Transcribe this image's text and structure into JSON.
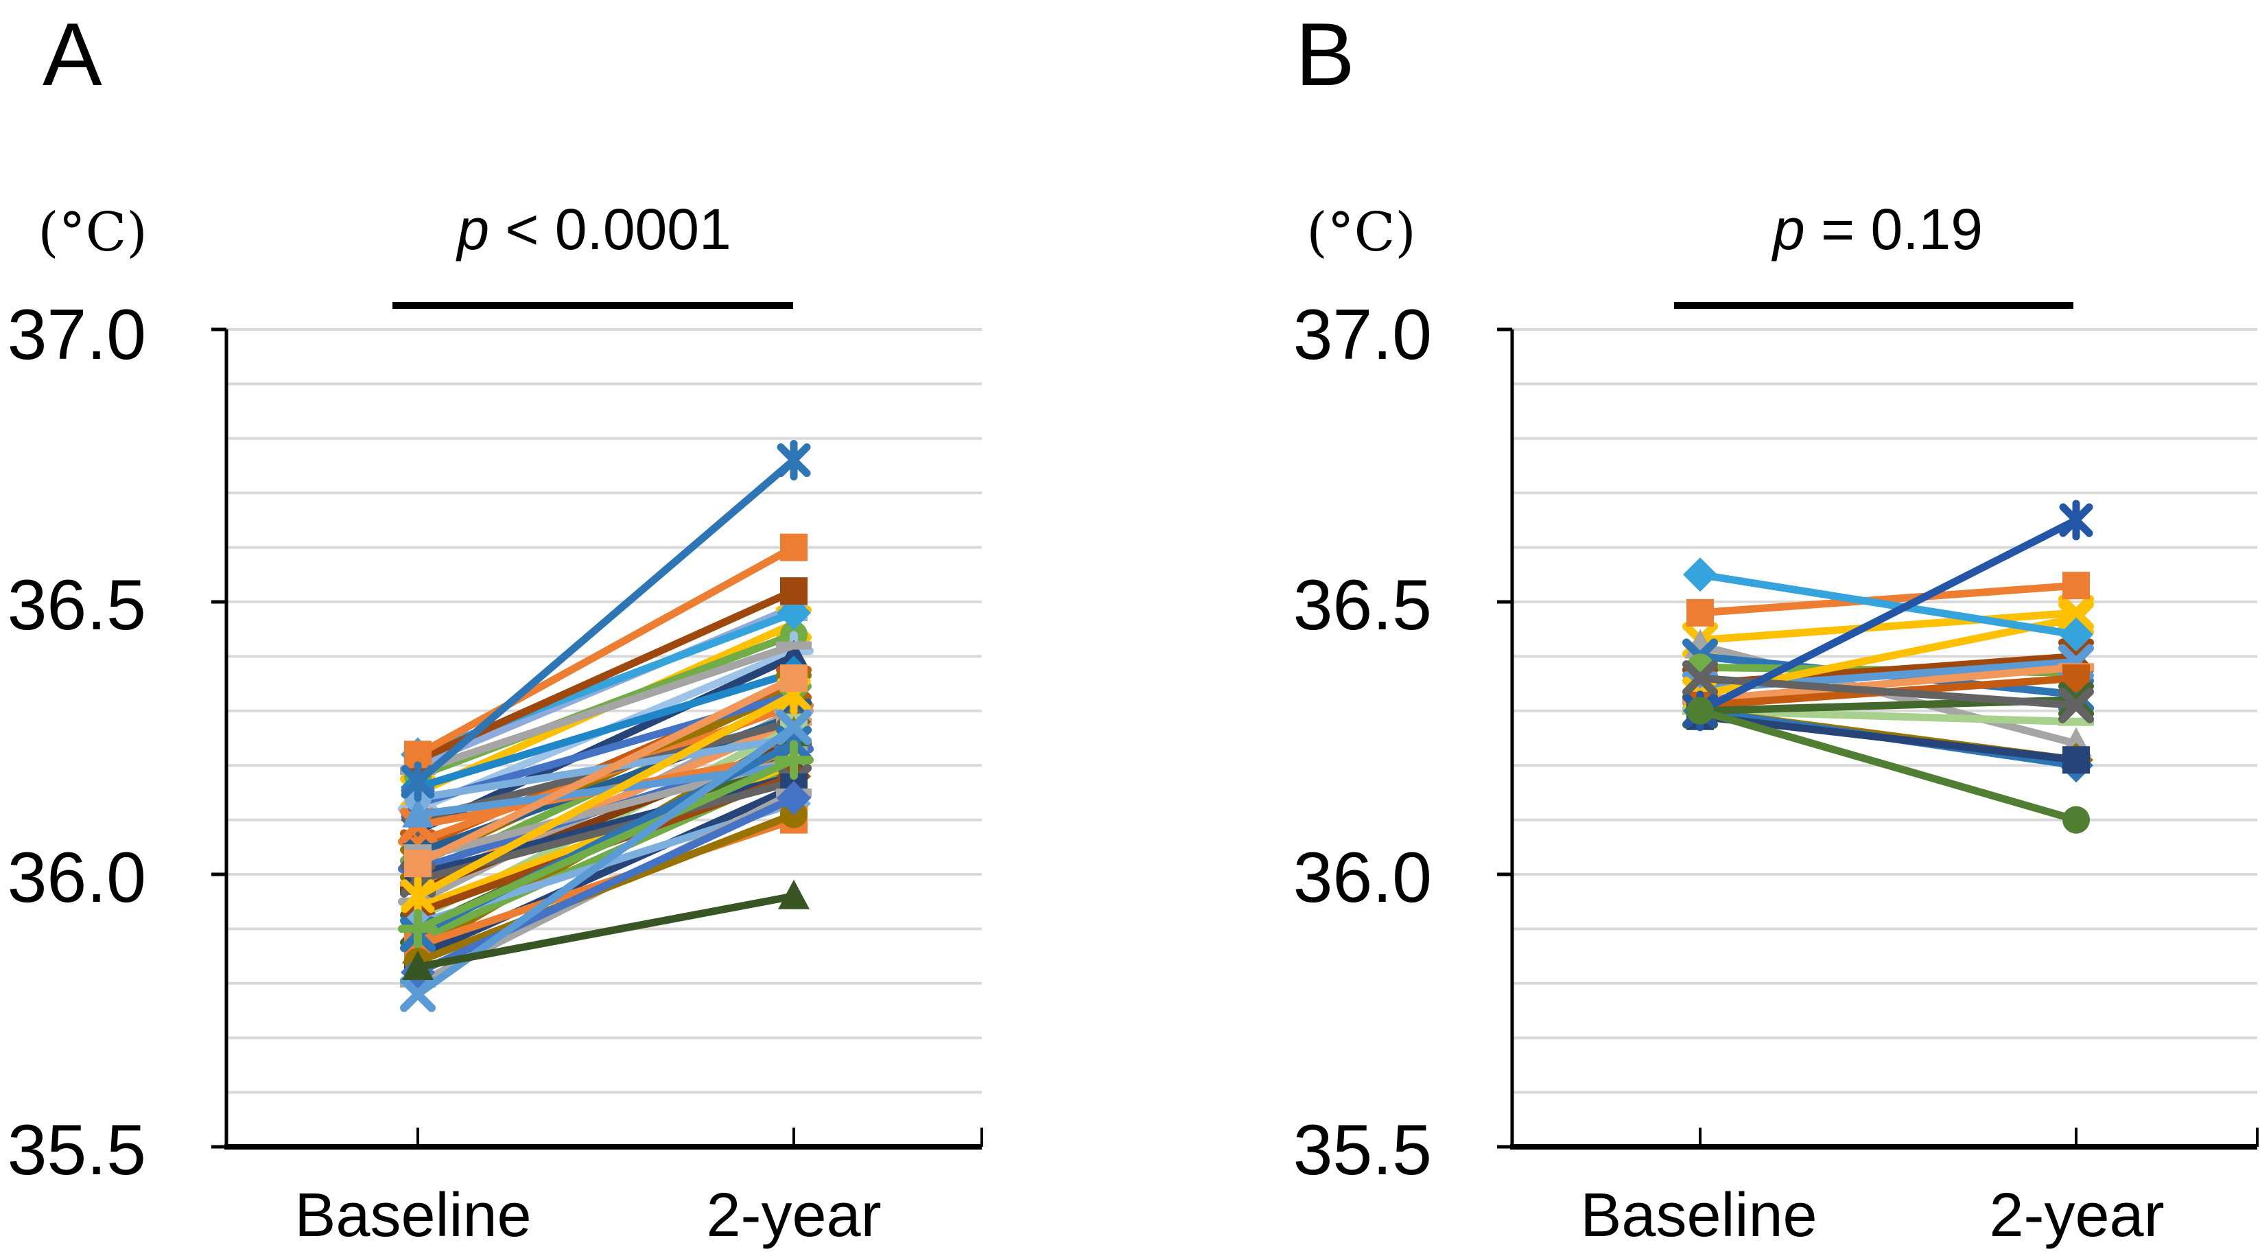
{
  "figure": {
    "background": "#FFFFFF",
    "axis_color": "#000000",
    "grid_color": "#D9D9D9",
    "significance_bar_color": "#000000"
  },
  "chart_data": [
    {
      "type": "line",
      "subtype": "paired-individual-subject-lines",
      "panel_label": "A",
      "unit_label": "(°C)",
      "p_annotation": {
        "italic": "p",
        "rest": " < 0.0001",
        "full": "p < 0.0001"
      },
      "categories": [
        "Baseline",
        "2-year"
      ],
      "xlabel": "",
      "ylabel": "(°C)",
      "ylim": [
        35.5,
        37.0
      ],
      "yticks": [
        37.0,
        36.5,
        36.0,
        35.5
      ],
      "ytick_labels": [
        "37.0",
        "36.5",
        "36.0",
        "35.5"
      ],
      "minor_grid_step": 0.1,
      "grid": "horizontal-minor",
      "legend": "none",
      "series": [
        {
          "color": "#8FAADC",
          "marker": "square",
          "values": [
            36.2,
            36.49
          ]
        },
        {
          "color": "#FFC000",
          "marker": "x",
          "values": [
            36.15,
            36.46
          ]
        },
        {
          "color": "#70AD47",
          "marker": "circle",
          "values": [
            36.18,
            36.44
          ]
        },
        {
          "color": "#9DC3E6",
          "marker": "plus",
          "values": [
            36.12,
            36.41
          ]
        },
        {
          "color": "#264478",
          "marker": "triangle",
          "values": [
            36.08,
            36.4
          ]
        },
        {
          "color": "#1F86C8",
          "marker": "diamond",
          "values": [
            36.16,
            36.37
          ]
        },
        {
          "color": "#A5A5A5",
          "marker": "dash",
          "values": [
            36.19,
            36.42
          ]
        },
        {
          "color": "#35A3DC",
          "marker": "diamond",
          "values": [
            36.22,
            36.48
          ]
        },
        {
          "color": "#C55A11",
          "marker": "x",
          "values": [
            36.05,
            36.35
          ]
        },
        {
          "color": "#997300",
          "marker": "x",
          "values": [
            36.02,
            36.34
          ]
        },
        {
          "color": "#4472C4",
          "marker": "asterisk",
          "values": [
            36.13,
            36.33
          ]
        },
        {
          "color": "#70AD47",
          "marker": "x",
          "values": [
            36.0,
            36.32
          ]
        },
        {
          "color": "#ED7D31",
          "marker": "plus",
          "values": [
            36.06,
            36.31
          ]
        },
        {
          "color": "#A5A5A5",
          "marker": "plus",
          "values": [
            35.95,
            36.3
          ]
        },
        {
          "color": "#255E91",
          "marker": "x",
          "values": [
            36.04,
            36.29
          ]
        },
        {
          "color": "#F1975A",
          "marker": "dash",
          "values": [
            35.98,
            36.28
          ]
        },
        {
          "color": "#636363",
          "marker": "diamond",
          "values": [
            36.1,
            36.28
          ]
        },
        {
          "color": "#A9D18E",
          "marker": "square",
          "values": [
            35.92,
            36.27
          ]
        },
        {
          "color": "#997300",
          "marker": "triangle",
          "values": [
            35.86,
            36.26
          ]
        },
        {
          "color": "#7CAFDD",
          "marker": "circle",
          "values": [
            36.14,
            36.25
          ]
        },
        {
          "color": "#843C0C",
          "marker": "dash",
          "values": [
            35.97,
            36.24
          ]
        },
        {
          "color": "#4472C4",
          "marker": "plus",
          "values": [
            36.01,
            36.23
          ]
        },
        {
          "color": "#ED7D31",
          "marker": "x",
          "values": [
            36.09,
            36.22
          ]
        },
        {
          "color": "#43682B",
          "marker": "x",
          "values": [
            35.9,
            36.22
          ]
        },
        {
          "color": "#A5A5A5",
          "marker": "square",
          "values": [
            36.03,
            36.21
          ]
        },
        {
          "color": "#FFC000",
          "marker": "diamond",
          "values": [
            35.94,
            36.2
          ]
        },
        {
          "color": "#5B9BD5",
          "marker": "triangle",
          "values": [
            36.11,
            36.2
          ]
        },
        {
          "color": "#70AD47",
          "marker": "square",
          "values": [
            35.88,
            36.19
          ]
        },
        {
          "color": "#264478",
          "marker": "circle",
          "values": [
            36.0,
            36.18
          ]
        },
        {
          "color": "#9E480E",
          "marker": "diamond",
          "values": [
            35.93,
            36.18
          ]
        },
        {
          "color": "#636363",
          "marker": "x",
          "values": [
            35.99,
            36.17
          ]
        },
        {
          "color": "#264478",
          "marker": "square",
          "values": [
            35.85,
            36.16
          ]
        },
        {
          "color": "#7CAFDD",
          "marker": "diamond",
          "values": [
            35.91,
            36.13
          ]
        },
        {
          "color": "#ED7D31",
          "marker": "square",
          "values": [
            35.87,
            36.1
          ]
        },
        {
          "color": "#FFC000",
          "marker": "asterisk",
          "values": [
            35.96,
            36.33
          ]
        },
        {
          "color": "#2E75B6",
          "marker": "x",
          "values": [
            35.89,
            36.24
          ]
        },
        {
          "color": "#70AD47",
          "marker": "plus",
          "values": [
            35.9,
            36.21
          ]
        },
        {
          "color": "#A5A5A5",
          "marker": "dash",
          "values": [
            35.8,
            36.15
          ]
        },
        {
          "color": "#F1975A",
          "marker": "square",
          "values": [
            36.02,
            36.36
          ]
        },
        {
          "color": "#997300",
          "marker": "circle",
          "values": [
            35.84,
            36.11
          ]
        },
        {
          "color": "#4472C4",
          "marker": "diamond",
          "values": [
            35.82,
            36.14
          ]
        },
        {
          "color": "#9E480E",
          "marker": "square",
          "values": [
            36.21,
            36.52
          ]
        },
        {
          "color": "#5B9BD5",
          "marker": "x",
          "values": [
            35.78,
            36.27
          ]
        },
        {
          "color": "#375623",
          "marker": "triangle",
          "values": [
            35.83,
            35.96
          ]
        },
        {
          "color": "#ED7D31",
          "marker": "square",
          "values": [
            36.22,
            36.6
          ]
        },
        {
          "color": "#2E75B6",
          "marker": "asterisk",
          "values": [
            36.17,
            36.76
          ]
        }
      ]
    },
    {
      "type": "line",
      "subtype": "paired-individual-subject-lines",
      "panel_label": "B",
      "unit_label": "(°C)",
      "p_annotation": {
        "italic": "p",
        "rest": " = 0.19",
        "full": "p = 0.19"
      },
      "categories": [
        "Baseline",
        "2-year"
      ],
      "xlabel": "",
      "ylabel": "(°C)",
      "ylim": [
        35.5,
        37.0
      ],
      "yticks": [
        37.0,
        36.5,
        36.0,
        35.5
      ],
      "ytick_labels": [
        "37.0",
        "36.5",
        "36.0",
        "35.5"
      ],
      "minor_grid_step": 0.1,
      "grid": "horizontal-minor",
      "legend": "none",
      "series": [
        {
          "color": "#FFC000",
          "marker": "x",
          "values": [
            36.43,
            36.48
          ]
        },
        {
          "color": "#A5A5A5",
          "marker": "triangle",
          "values": [
            36.42,
            36.24
          ]
        },
        {
          "color": "#2E75B6",
          "marker": "x",
          "values": [
            36.4,
            36.33
          ]
        },
        {
          "color": "#70AD47",
          "marker": "circle",
          "values": [
            36.38,
            36.37
          ]
        },
        {
          "color": "#9E480E",
          "marker": "x",
          "values": [
            36.35,
            36.4
          ]
        },
        {
          "color": "#5B9BD5",
          "marker": "x",
          "values": [
            36.34,
            36.39
          ]
        },
        {
          "color": "#FFC000",
          "marker": "x",
          "values": [
            36.33,
            36.47
          ]
        },
        {
          "color": "#F1975A",
          "marker": "dash",
          "values": [
            36.32,
            36.38
          ]
        },
        {
          "color": "#C55A11",
          "marker": "square",
          "values": [
            36.31,
            36.36
          ]
        },
        {
          "color": "#A9D18E",
          "marker": "dash",
          "values": [
            36.3,
            36.28
          ]
        },
        {
          "color": "#997300",
          "marker": "diamond",
          "values": [
            36.3,
            36.21
          ]
        },
        {
          "color": "#2E75B6",
          "marker": "diamond",
          "values": [
            36.3,
            36.2
          ]
        },
        {
          "color": "#264478",
          "marker": "square",
          "values": [
            36.29,
            36.21
          ]
        },
        {
          "color": "#43682B",
          "marker": "x",
          "values": [
            36.3,
            36.32
          ]
        },
        {
          "color": "#636363",
          "marker": "x",
          "values": [
            36.36,
            36.31
          ]
        },
        {
          "color": "#ED7D31",
          "marker": "square",
          "values": [
            36.48,
            36.53
          ]
        },
        {
          "color": "#35A3DC",
          "marker": "diamond",
          "values": [
            36.55,
            36.44
          ]
        },
        {
          "color": "#2456A8",
          "marker": "asterisk",
          "values": [
            36.3,
            36.65
          ]
        },
        {
          "color": "#507E32",
          "marker": "circle",
          "values": [
            36.3,
            36.1
          ]
        }
      ]
    }
  ]
}
